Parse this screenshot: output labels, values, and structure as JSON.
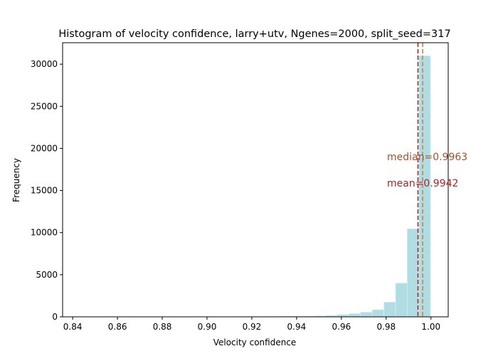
{
  "chart_data": {
    "type": "bar",
    "title": "Histogram of velocity confidence, larry+utv, Ngenes=2000, split_seed=317",
    "xlabel": "Velocity confidence",
    "ylabel": "Frequency",
    "xlim": [
      0.8355,
      1.0077
    ],
    "ylim": [
      0,
      32550
    ],
    "xticks": [
      "0.84",
      "0.86",
      "0.88",
      "0.90",
      "0.92",
      "0.94",
      "0.96",
      "0.98",
      "1.00"
    ],
    "xtick_values": [
      0.84,
      0.86,
      0.88,
      0.9,
      0.92,
      0.94,
      0.96,
      0.98,
      1.0
    ],
    "yticks": [
      "0",
      "5000",
      "10000",
      "15000",
      "20000",
      "25000",
      "30000"
    ],
    "ytick_values": [
      0,
      5000,
      10000,
      15000,
      20000,
      25000,
      30000
    ],
    "bin_edges": [
      0.8433,
      0.8485,
      0.8537,
      0.8589,
      0.8641,
      0.8694,
      0.8746,
      0.8798,
      0.885,
      0.8902,
      0.8955,
      0.9007,
      0.9059,
      0.9111,
      0.9163,
      0.9216,
      0.9268,
      0.932,
      0.9372,
      0.9424,
      0.9477,
      0.9529,
      0.9581,
      0.9633,
      0.9685,
      0.9738,
      0.979,
      0.9842,
      0.9894,
      0.9946,
      0.9998
    ],
    "values": [
      2,
      1,
      1,
      2,
      2,
      3,
      3,
      4,
      5,
      6,
      8,
      10,
      12,
      15,
      20,
      25,
      35,
      45,
      60,
      80,
      110,
      160,
      260,
      380,
      550,
      850,
      1750,
      4000,
      10450,
      31000
    ],
    "bar_color": "#b0dde4",
    "bar_edge_color": "#d9eef1",
    "median": 0.9963,
    "mean": 0.9942,
    "median_label": "median=0.9963",
    "mean_label": "mean=0.9942",
    "median_color": "#cd853f",
    "mean_color": "#b22222",
    "median_label_color": "#a0522d",
    "grid": false
  }
}
